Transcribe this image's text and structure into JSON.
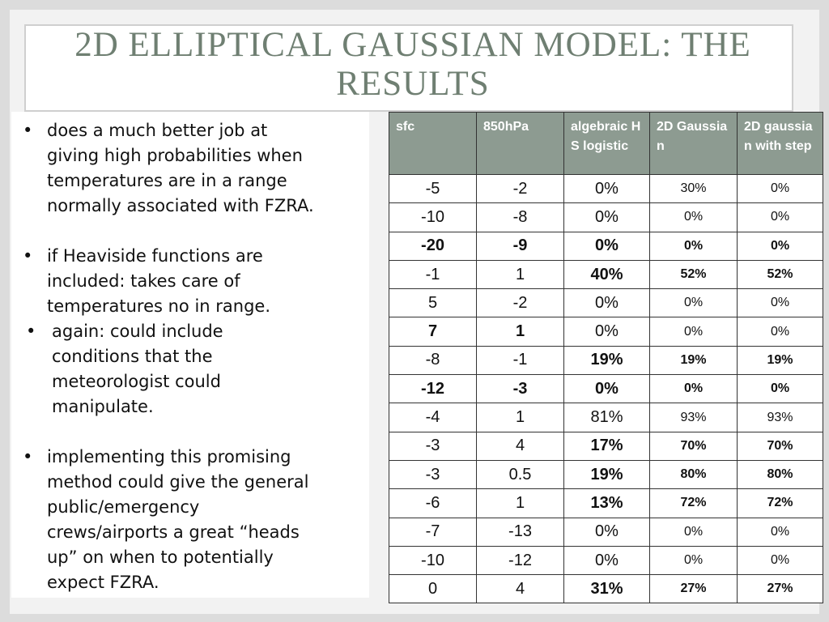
{
  "title": "2D ELLIPTICAL GAUSSIAN MODEL: THE RESULTS",
  "bullets": [
    {
      "text": "does a much better job at giving high probabilities when temperatures are in a range normally associated with FZRA.",
      "subbullets": []
    },
    {
      "text": "if Heaviside functions are included: takes care of temperatures no in range.",
      "subbullets": [
        "again: could include conditions that the meteorologist could manipulate."
      ]
    },
    {
      "text": "implementing this promising method could give the general public/emergency crews/airports a great “heads up” on when to potentially expect FZRA.",
      "subbullets": []
    }
  ],
  "table": {
    "header": [
      "sfc",
      "850hPa",
      "algebraic HS logistic",
      "2D Gaussian",
      "2D gaussian with step"
    ],
    "rows": [
      [
        "-5",
        "-2",
        "0%",
        "30%",
        "0%"
      ],
      [
        "-10",
        "-8",
        "0%",
        "0%",
        "0%"
      ],
      [
        "-20",
        "-9",
        "0%",
        "0%",
        "0%"
      ],
      [
        "-1",
        "1",
        "40%",
        "52%",
        "52%"
      ],
      [
        "5",
        "-2",
        "0%",
        "0%",
        "0%"
      ],
      [
        "7",
        "1",
        "0%",
        "0%",
        "0%"
      ],
      [
        "-8",
        "-1",
        "19%",
        "19%",
        "19%"
      ],
      [
        "-12",
        "-3",
        "0%",
        "0%",
        "0%"
      ],
      [
        "-4",
        "1",
        "81%",
        "93%",
        "93%"
      ],
      [
        "-3",
        "4",
        "17%",
        "70%",
        "70%"
      ],
      [
        "-3",
        "0.5",
        "19%",
        "80%",
        "80%"
      ],
      [
        "-6",
        "1",
        "13%",
        "72%",
        "72%"
      ],
      [
        "-7",
        "-13",
        "0%",
        "0%",
        "0%"
      ],
      [
        "-10",
        "-12",
        "0%",
        "0%",
        "0%"
      ],
      [
        "0",
        "4",
        "31%",
        "27%",
        "27%"
      ]
    ]
  }
}
